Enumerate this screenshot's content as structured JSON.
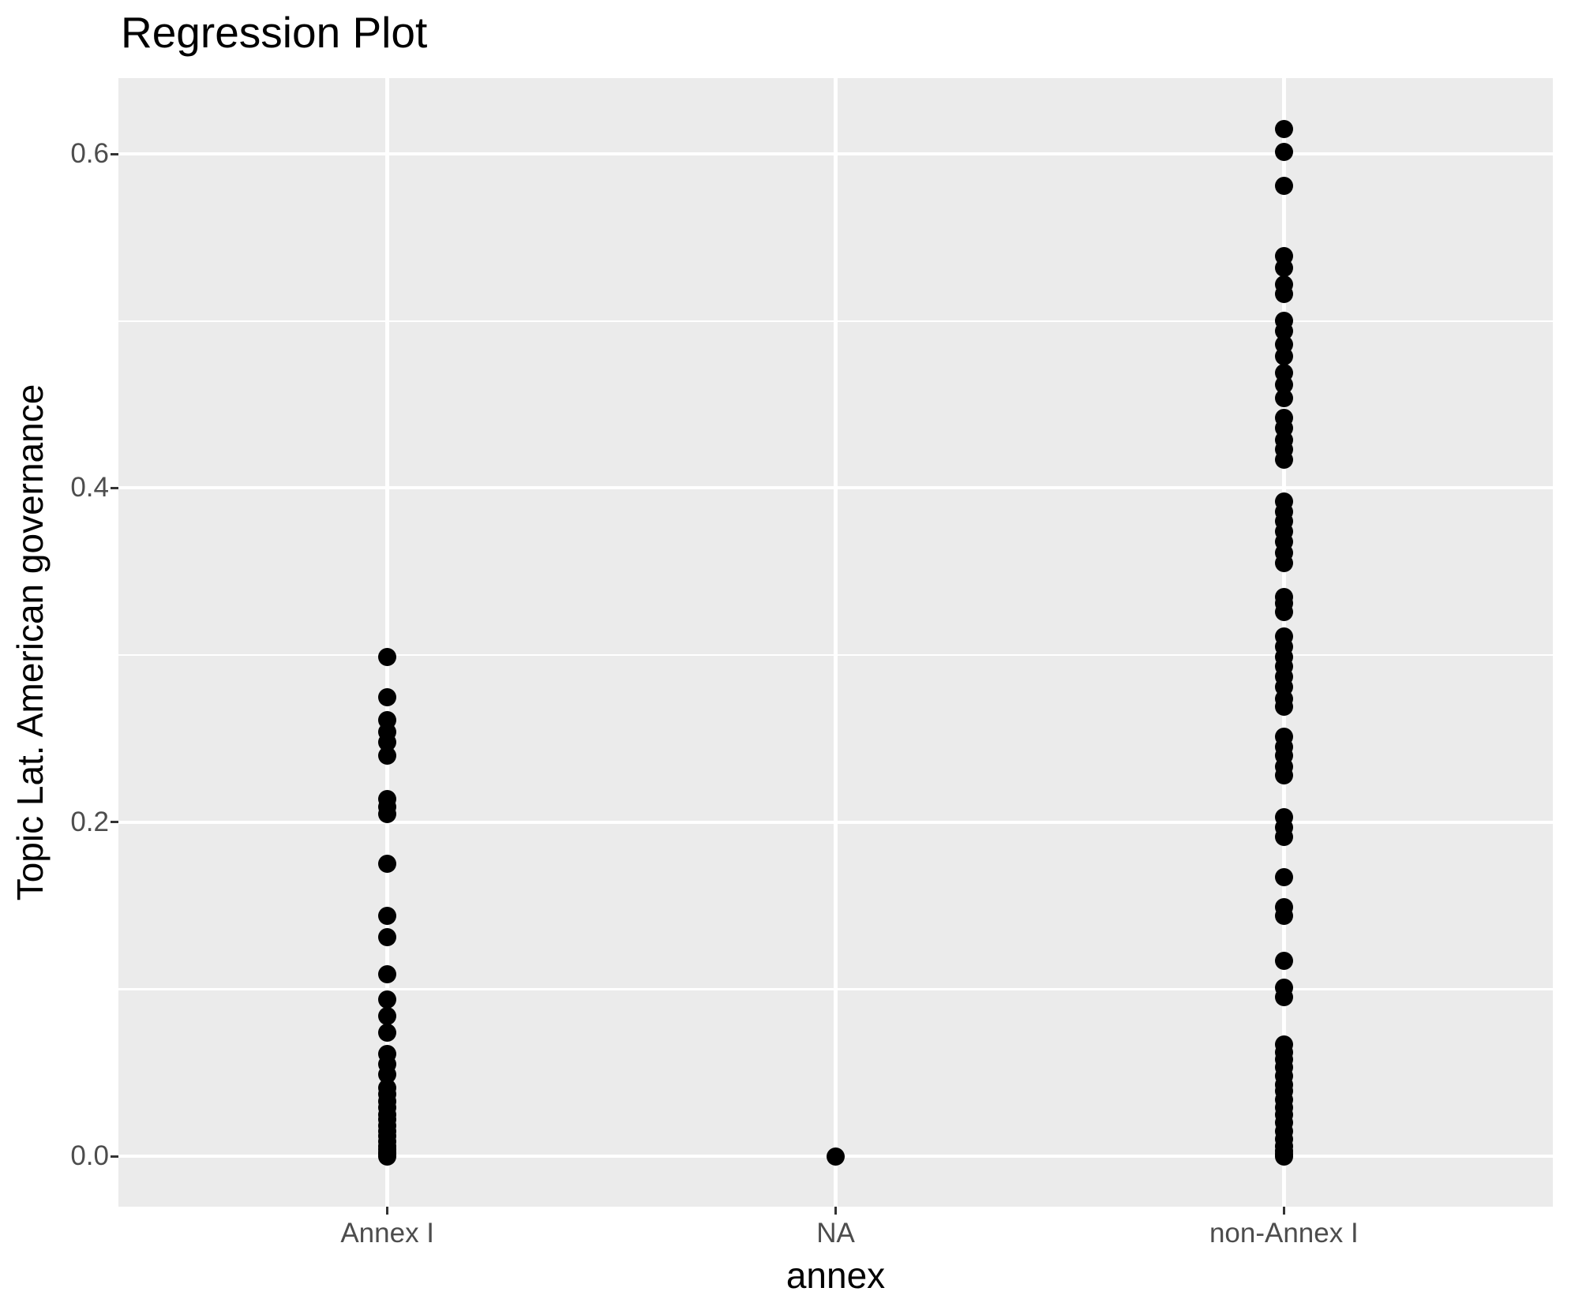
{
  "title": "Regression Plot",
  "chart_data": {
    "type": "scatter",
    "title": "Regression Plot",
    "xlabel": "annex",
    "ylabel": "Topic Lat. American governance",
    "categories": [
      "Annex I",
      "NA",
      "non-Annex I"
    ],
    "y_tick_labels": [
      "0.0",
      "0.2",
      "0.4",
      "0.6"
    ],
    "y_major_ticks": [
      0.0,
      0.2,
      0.4,
      0.6
    ],
    "y_minor_ticks": [
      0.1,
      0.3,
      0.5
    ],
    "ylim": [
      -0.0302,
      0.6454
    ],
    "grid": true,
    "legend_position": "none",
    "panel_background": "#EBEBEB",
    "grid_color": "#FFFFFF",
    "point_color": "#000000",
    "tick_label_color": "#4D4D4D",
    "axis_title_color": "#000000",
    "series": [
      {
        "name": "Annex I",
        "values": [
          0.299,
          0.275,
          0.261,
          0.254,
          0.248,
          0.24,
          0.214,
          0.209,
          0.205,
          0.175,
          0.144,
          0.131,
          0.109,
          0.094,
          0.084,
          0.074,
          0.061,
          0.055,
          0.049,
          0.041,
          0.037,
          0.033,
          0.029,
          0.025,
          0.022,
          0.018,
          0.015,
          0.012,
          0.009,
          0.006,
          0.004,
          0.002,
          0.001,
          0.0
        ]
      },
      {
        "name": "NA",
        "values": [
          0.0
        ]
      },
      {
        "name": "non-Annex I",
        "values": [
          0.615,
          0.601,
          0.581,
          0.539,
          0.532,
          0.522,
          0.516,
          0.5,
          0.494,
          0.486,
          0.479,
          0.469,
          0.462,
          0.454,
          0.442,
          0.436,
          0.429,
          0.423,
          0.417,
          0.392,
          0.386,
          0.38,
          0.374,
          0.368,
          0.361,
          0.355,
          0.335,
          0.331,
          0.326,
          0.311,
          0.305,
          0.299,
          0.293,
          0.287,
          0.281,
          0.274,
          0.269,
          0.251,
          0.245,
          0.24,
          0.233,
          0.228,
          0.203,
          0.197,
          0.191,
          0.167,
          0.149,
          0.144,
          0.117,
          0.101,
          0.095,
          0.067,
          0.062,
          0.058,
          0.053,
          0.048,
          0.043,
          0.039,
          0.034,
          0.029,
          0.025,
          0.02,
          0.015,
          0.01,
          0.006,
          0.003,
          0.001,
          0.0
        ]
      }
    ]
  }
}
